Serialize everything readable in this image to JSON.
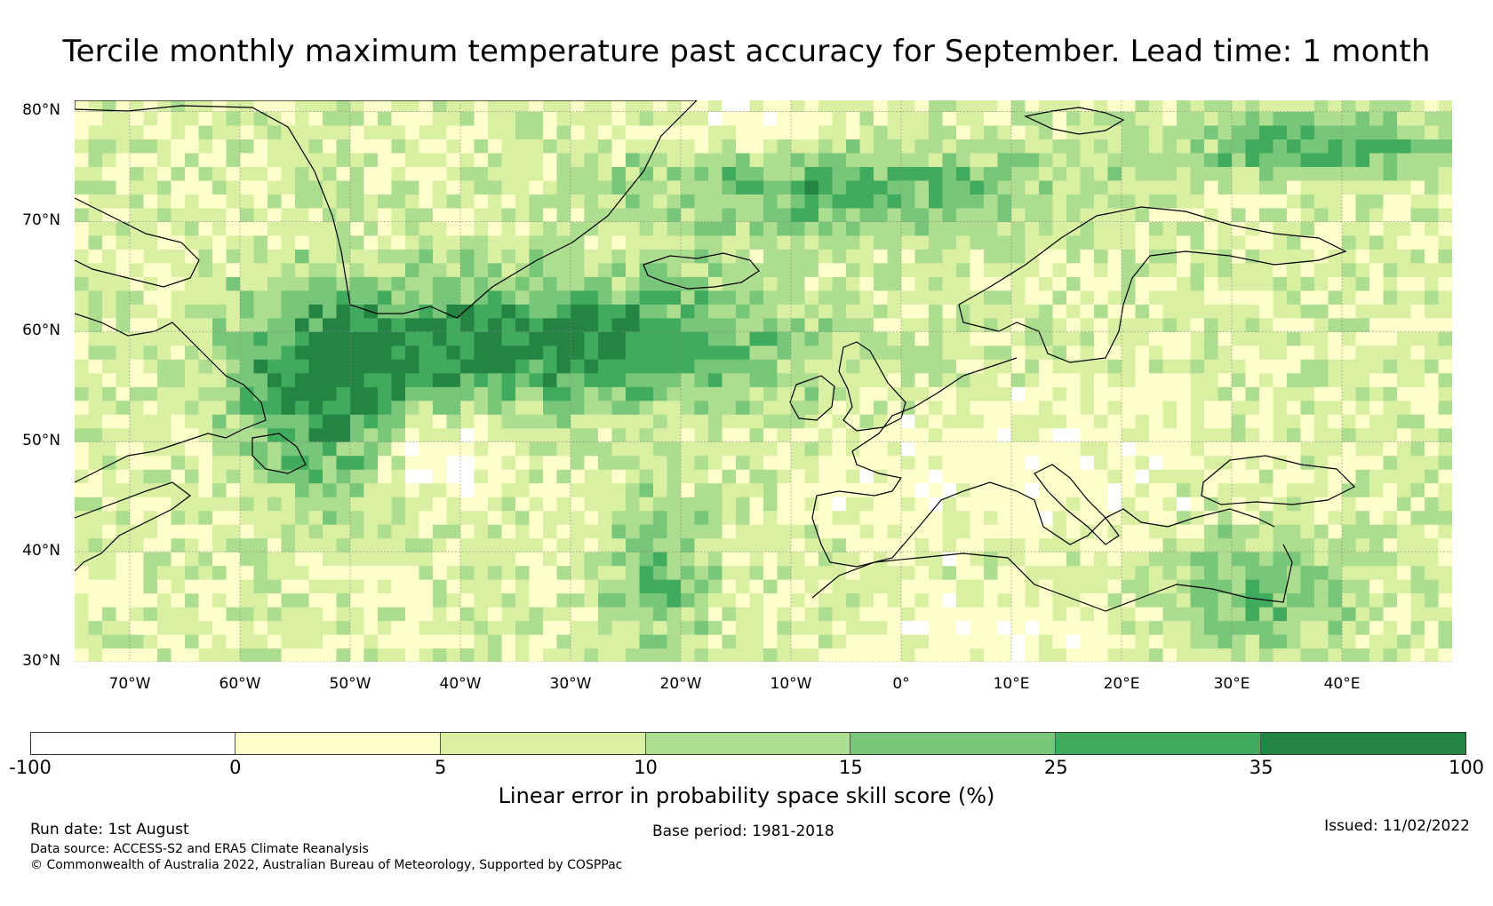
{
  "title": "Tercile monthly maximum temperature past accuracy for September. Lead time: 1 month",
  "map": {
    "lon_range": [
      -75,
      50
    ],
    "lat_range": [
      30,
      81
    ],
    "lat_ticks": [
      "80°N",
      "70°N",
      "60°N",
      "50°N",
      "40°N",
      "30°N"
    ],
    "lat_values": [
      80,
      70,
      60,
      50,
      40,
      30
    ],
    "lon_ticks": [
      "70°W",
      "60°W",
      "50°W",
      "40°W",
      "30°W",
      "20°W",
      "10°W",
      "0°",
      "10°E",
      "20°E",
      "30°E",
      "40°E"
    ],
    "lon_values": [
      -70,
      -60,
      -50,
      -40,
      -30,
      -20,
      -10,
      0,
      10,
      20,
      30,
      40
    ]
  },
  "colorbar": {
    "ticks": [
      "-100",
      "0",
      "5",
      "10",
      "15",
      "25",
      "35",
      "100"
    ],
    "colors": [
      "#ffffff",
      "#ffffcc",
      "#d9f0a3",
      "#addd8e",
      "#78c679",
      "#41ab5d",
      "#238443"
    ],
    "label": "Linear error in probability space skill score (%)"
  },
  "footer": {
    "run_date": "Run date: 1st August",
    "base_period": "Base period: 1981-2018",
    "issued": "Issued: 11/02/2022",
    "data_source": "Data source: ACCESS-S2 and ERA5 Climate Reanalysis",
    "copyright": "© Commonwealth of Australia 2022, Australian Bureau of Meteorology, Supported by COSPPac"
  }
}
